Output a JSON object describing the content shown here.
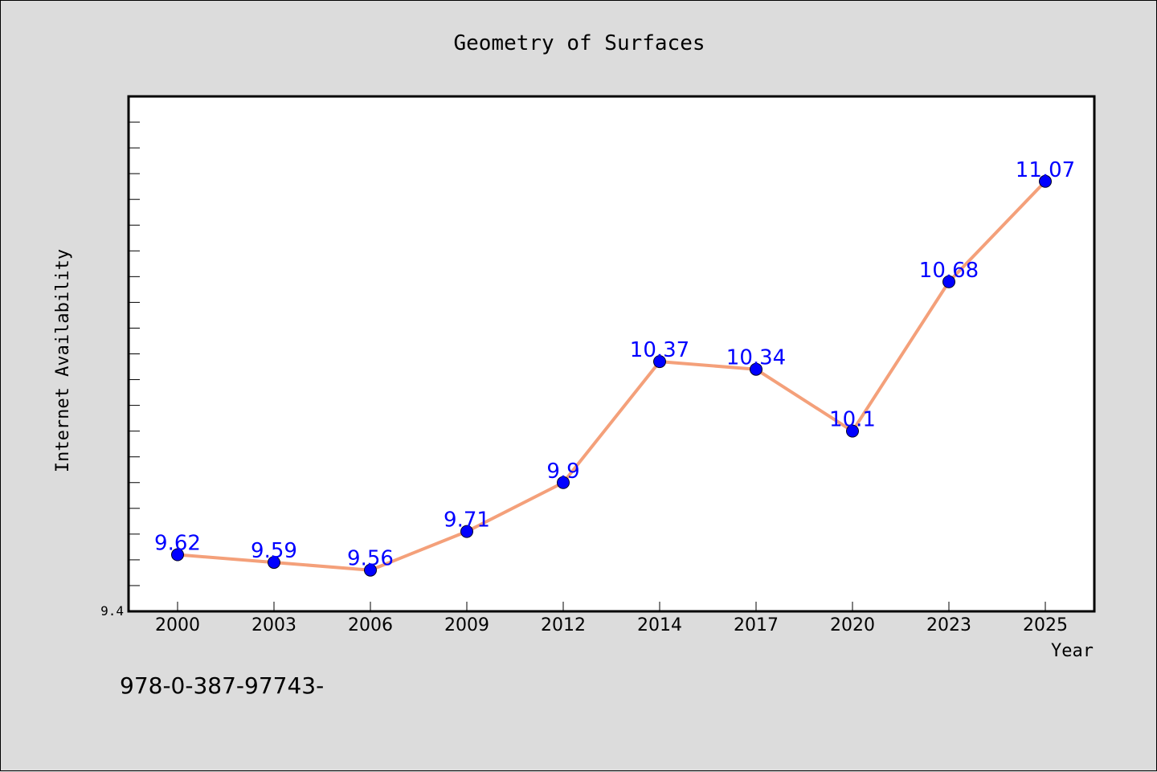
{
  "figure": {
    "background": "#dcdcdc",
    "plot_background": "#ffffff",
    "footnote": "978-0-387-97743-"
  },
  "chart_data": {
    "type": "line",
    "title": "Geometry of Surfaces",
    "xlabel": "Year",
    "ylabel": "Internet Availability",
    "categories": [
      "2000",
      "2003",
      "2006",
      "2009",
      "2012",
      "2014",
      "2017",
      "2020",
      "2023",
      "2025"
    ],
    "series": [
      {
        "values": [
          9.62,
          9.59,
          9.56,
          9.71,
          9.9,
          10.37,
          10.34,
          10.1,
          10.68,
          11.07
        ],
        "line_color": "#f4a07a",
        "marker_color": "#0000ff",
        "data_labels": [
          "9.62",
          "9.59",
          "9.56",
          "9.71",
          "9.9",
          "10.37",
          "10.34",
          "10.1",
          "10.68",
          "11.07"
        ]
      }
    ],
    "ylim": [
      9.4,
      11.4
    ],
    "y_tick_labels": [
      "9.4"
    ],
    "y_tick_step": 0.1,
    "grid": false,
    "legend": "none"
  }
}
